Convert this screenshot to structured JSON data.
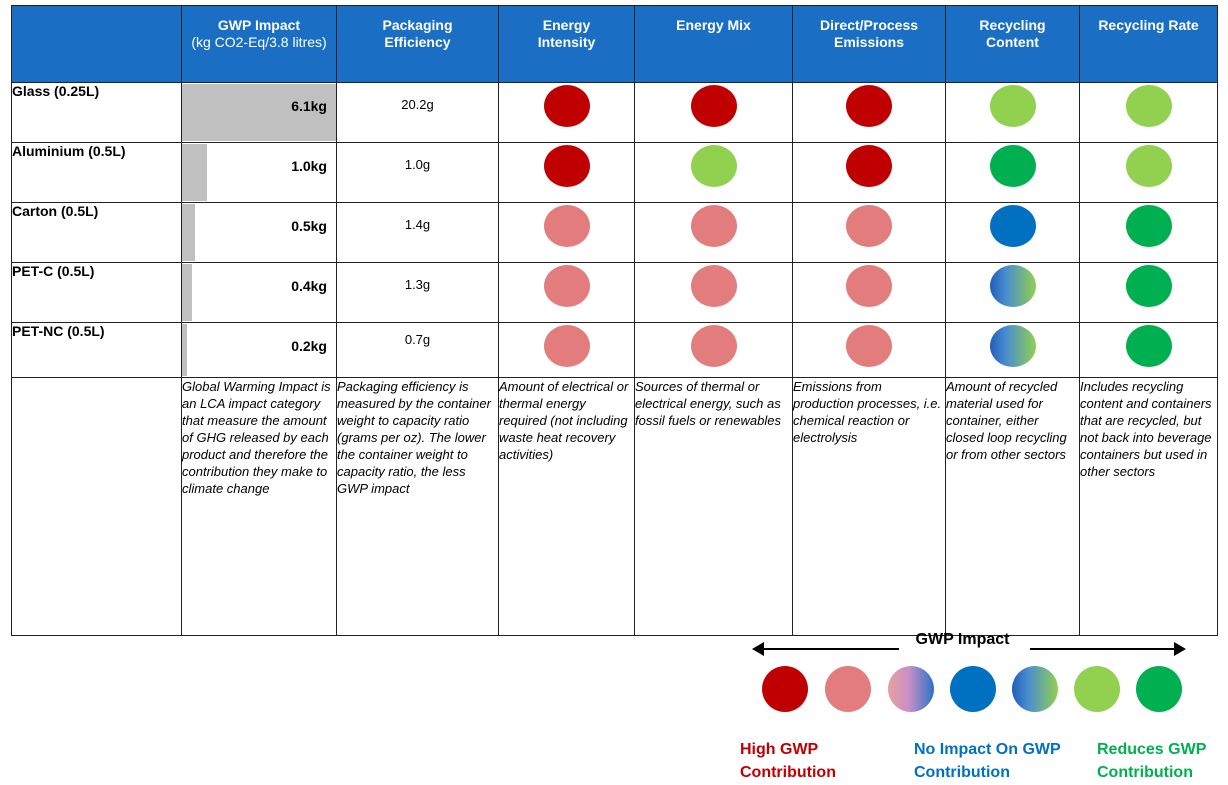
{
  "headers": {
    "gwp": {
      "title": "GWP Impact",
      "sub": "(kg CO2-Eq/3.8 litres)"
    },
    "pe": "Packaging Efficiency",
    "ei": "Energy Intensity",
    "em": "Energy Mix",
    "dpe": "Direct/Process Emissions",
    "rc": "Recycling Content",
    "rr": "Recycling Rate"
  },
  "rows": [
    {
      "label": "Glass (0.25L)",
      "gwp": "6.1kg",
      "gwp_value": 6.1,
      "pe": "20.2g"
    },
    {
      "label": "Aluminium (0.5L)",
      "gwp": "1.0kg",
      "gwp_value": 1.0,
      "pe": "1.0g"
    },
    {
      "label": "Carton (0.5L)",
      "gwp": "0.5kg",
      "gwp_value": 0.5,
      "pe": "1.4g"
    },
    {
      "label": "PET-C (0.5L)",
      "gwp": "0.4kg",
      "gwp_value": 0.4,
      "pe": "1.3g"
    },
    {
      "label": "PET-NC (0.5L)",
      "gwp": "0.2kg",
      "gwp_value": 0.2,
      "pe": "0.7g"
    }
  ],
  "ratings": {
    "scale_max_gwp": 6.1,
    "colors": {
      "high": "#c00000",
      "medium_high": "#e37c7c",
      "none": "#0070c0",
      "reduces_low": "#92d050",
      "reduces_high": "#00b050"
    }
  },
  "descriptions": {
    "gwp": "Global Warming Impact is an LCA impact category that measure the amount of GHG released by each product and therefore the contribution they make to climate change",
    "pe": "Packaging efficiency is measured by the container weight to capacity ratio (grams per oz). The lower the container weight to capacity ratio, the less GWP impact",
    "ei": "Amount of electrical or thermal energy required (not including waste heat recovery activities)",
    "em": "Sources of thermal or electrical energy, such as fossil fuels or renewables",
    "dpe": "Emissions from production processes, i.e. chemical reaction or electrolysis",
    "rc": "Amount of recycled material used for container, either closed loop recycling or from other sectors",
    "rr": "Includes recycling content and containers that are recycled, but not back into beverage containers but used in other sectors"
  },
  "legend": {
    "title": "GWP Impact",
    "high_label": "High GWP Contribution",
    "none_label": "No Impact On GWP Contribution",
    "reduces_label": "Reduces GWP Contribution",
    "high_color": "#c00000",
    "none_color": "#0070c0",
    "reduces_color": "#00b050"
  }
}
